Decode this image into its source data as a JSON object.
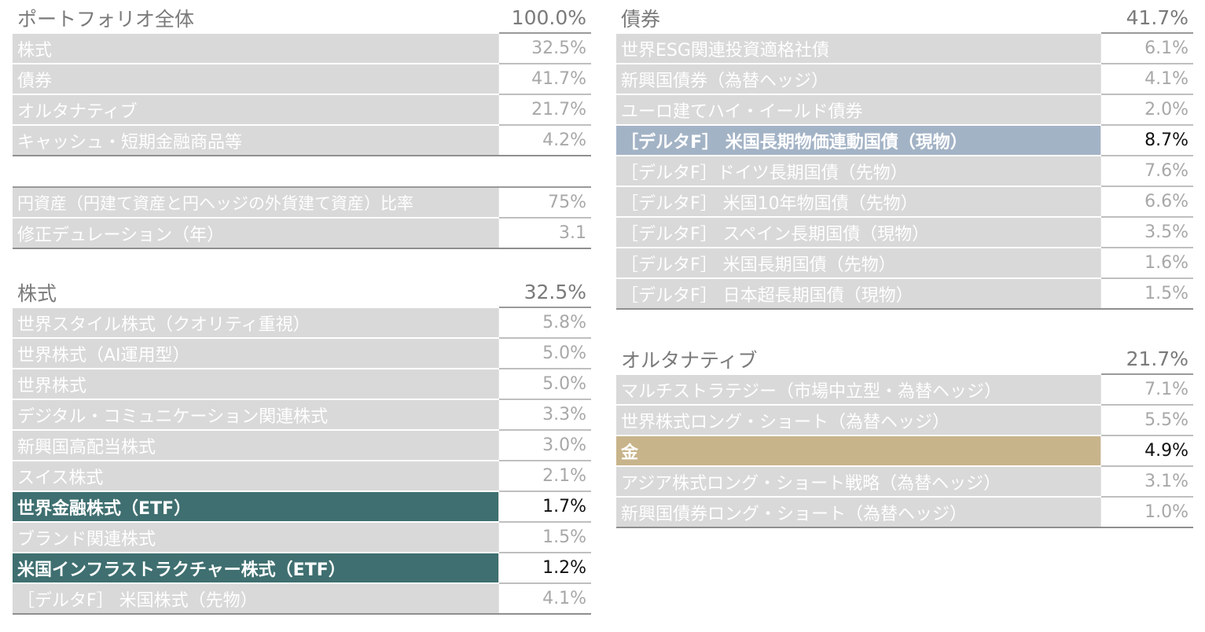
{
  "portfolio": {
    "title": "ポートフォリオ全体",
    "total": "100.0%",
    "rows": [
      {
        "label": "株式",
        "value": "32.5%"
      },
      {
        "label": "債券",
        "value": "41.7%"
      },
      {
        "label": "オルタナティブ",
        "value": "21.7%"
      },
      {
        "label": "キャッシュ・短期金融商品等",
        "value": "4.2%"
      }
    ]
  },
  "metrics": {
    "rows": [
      {
        "label": "円資産（円建て資産と円ヘッジの外貨建て資産）比率",
        "value": "75%"
      },
      {
        "label": "修正デュレーション（年）",
        "value": "3.1"
      }
    ]
  },
  "equity": {
    "title": "株式",
    "total": "32.5%",
    "rows": [
      {
        "label": "世界スタイル株式（クオリティ重視）",
        "value": "5.8%"
      },
      {
        "label": "世界株式（AI運用型）",
        "value": "5.0%"
      },
      {
        "label": "世界株式",
        "value": "5.0%"
      },
      {
        "label": "デジタル・コミュニケーション関連株式",
        "value": "3.3%"
      },
      {
        "label": "新興国高配当株式",
        "value": "3.0%"
      },
      {
        "label": "スイス株式",
        "value": "2.1%"
      },
      {
        "label": "世界金融株式（ETF）",
        "value": "1.7%"
      },
      {
        "label": "ブランド関連株式",
        "value": "1.5%"
      },
      {
        "label": "米国インフラストラクチャー株式（ETF）",
        "value": "1.2%"
      },
      {
        "label": "［デルタF］ 米国株式（先物）",
        "value": "4.1%"
      }
    ]
  },
  "bonds": {
    "title": "債券",
    "total": "41.7%",
    "rows": [
      {
        "label": "世界ESG関連投資適格社債",
        "value": "6.1%"
      },
      {
        "label": "新興国債券（為替ヘッジ）",
        "value": "4.1%"
      },
      {
        "label": "ユーロ建てハイ・イールド債券",
        "value": "2.0%"
      },
      {
        "label": "［デルタF］ 米国長期物価連動国債（現物）",
        "value": "8.7%"
      },
      {
        "label": "［デルタF］ドイツ長期国債（先物）",
        "value": "7.6%"
      },
      {
        "label": "［デルタF］ 米国10年物国債（先物）",
        "value": "6.6%"
      },
      {
        "label": "［デルタF］ スペイン長期国債（現物）",
        "value": "3.5%"
      },
      {
        "label": "［デルタF］ 米国長期国債（先物）",
        "value": "1.6%"
      },
      {
        "label": "［デルタF］ 日本超長期国債（現物）",
        "value": "1.5%"
      }
    ]
  },
  "alternatives": {
    "title": "オルタナティブ",
    "total": "21.7%",
    "rows": [
      {
        "label": "マルチストラテジー（市場中立型・為替ヘッジ）",
        "value": "7.1%"
      },
      {
        "label": "世界株式ロング・ショート（為替ヘッジ）",
        "value": "5.5%"
      },
      {
        "label": "金",
        "value": "4.9%"
      },
      {
        "label": "アジア株式ロング・ショート戦略（為替ヘッジ）",
        "value": "3.1%"
      },
      {
        "label": "新興国債券ロング・ショート（為替ヘッジ）",
        "value": "1.0%"
      }
    ]
  },
  "colors": {
    "row_fill": "#d9d9d9",
    "highlight_teal": "#3f6f70",
    "highlight_blue": "#a3b3c6",
    "highlight_gold": "#c8b48b"
  }
}
